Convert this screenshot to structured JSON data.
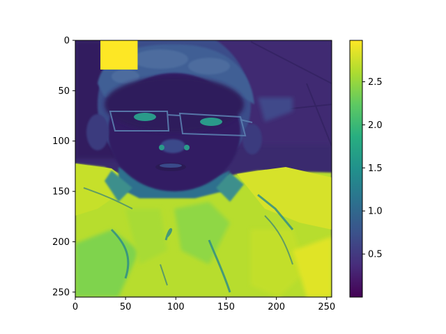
{
  "chart_data": {
    "type": "heatmap",
    "title": "",
    "xlabel": "",
    "ylabel": "",
    "xlim": [
      0,
      255
    ],
    "ylim": [
      255,
      0
    ],
    "xticks": [
      0,
      50,
      100,
      150,
      200,
      250
    ],
    "yticks": [
      0,
      50,
      100,
      150,
      200,
      250
    ],
    "xtick_labels": [
      "0",
      "50",
      "100",
      "150",
      "200",
      "250"
    ],
    "ytick_labels": [
      "0",
      "50",
      "100",
      "150",
      "200",
      "250"
    ],
    "colormap": "viridis",
    "colorbar": {
      "range": [
        0.0,
        2.98
      ],
      "ticks": [
        0.5,
        1.0,
        1.5,
        2.0,
        2.5
      ],
      "tick_labels": [
        "0.5",
        "1.0",
        "1.5",
        "2.0",
        "2.5"
      ]
    },
    "image_content": "grayscale-like photo of a person with glasses and a light jacket rendered in viridis colormap",
    "occlusion_patch": {
      "x_range": [
        25,
        62
      ],
      "y_range": [
        0,
        29
      ],
      "value": 2.98
    },
    "colors": {
      "low": "#440154",
      "mid": "#21918c",
      "high": "#fde725"
    }
  }
}
